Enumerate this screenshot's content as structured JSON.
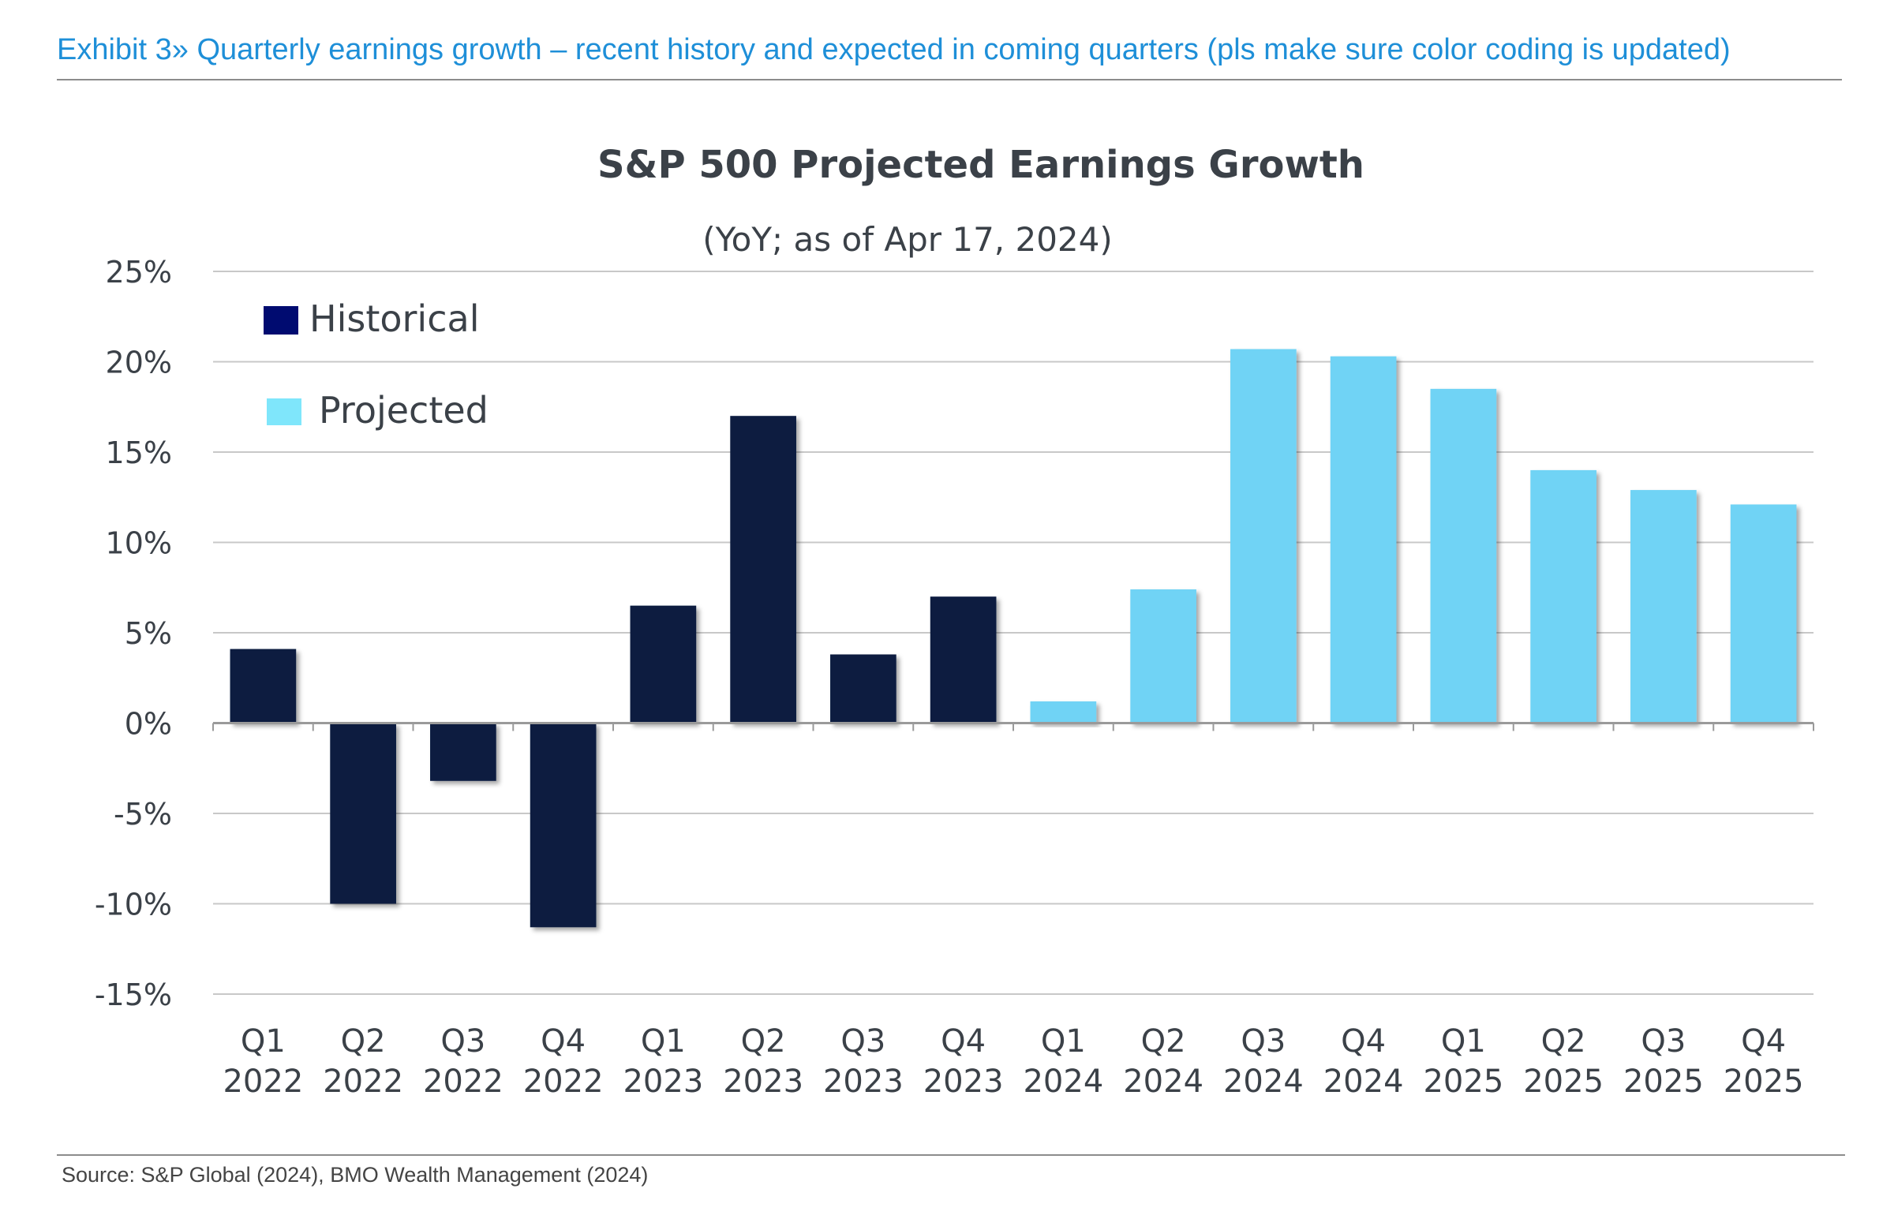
{
  "exhibit_title": "Exhibit 3» Quarterly earnings growth – recent history and expected in coming quarters (pls make sure color coding is updated)",
  "source": "Source: S&P Global (2024), BMO Wealth Management (2024)",
  "colors": {
    "historical": "#071a3f",
    "projected": "#6fd3f5",
    "legend_historical": "#000b70",
    "legend_projected": "#7fe6fb",
    "accent": "#1e8fd8"
  },
  "chart_data": {
    "type": "bar",
    "title": "S&P 500 Projected Earnings Growth",
    "subtitle": "(YoY; as of Apr 17, 2024)",
    "xlabel": "",
    "ylabel": "",
    "ylim": [
      -15,
      25
    ],
    "yticks": [
      25,
      20,
      15,
      10,
      5,
      0,
      -5,
      -10,
      -15
    ],
    "ytick_labels": [
      "25%",
      "20%",
      "15%",
      "10%",
      "5%",
      "0%",
      "-5%",
      "-10%",
      "-15%"
    ],
    "grid": true,
    "legend": [
      {
        "label": "Historical",
        "series": "historical"
      },
      {
        "label": "Projected",
        "series": "projected"
      }
    ],
    "legend_position": "top-left",
    "categories": [
      [
        "Q1",
        "2022"
      ],
      [
        "Q2",
        "2022"
      ],
      [
        "Q3",
        "2022"
      ],
      [
        "Q4",
        "2022"
      ],
      [
        "Q1",
        "2023"
      ],
      [
        "Q2",
        "2023"
      ],
      [
        "Q3",
        "2023"
      ],
      [
        "Q4",
        "2023"
      ],
      [
        "Q1",
        "2024"
      ],
      [
        "Q2",
        "2024"
      ],
      [
        "Q3",
        "2024"
      ],
      [
        "Q4",
        "2024"
      ],
      [
        "Q1",
        "2025"
      ],
      [
        "Q2",
        "2025"
      ],
      [
        "Q3",
        "2025"
      ],
      [
        "Q4",
        "2025"
      ]
    ],
    "values": [
      4.1,
      -10.0,
      -3.2,
      -11.3,
      6.5,
      17.0,
      3.8,
      7.0,
      1.2,
      7.4,
      20.7,
      20.3,
      18.5,
      14.0,
      12.9,
      12.1
    ],
    "series_type": [
      "historical",
      "historical",
      "historical",
      "historical",
      "historical",
      "historical",
      "historical",
      "historical",
      "projected",
      "projected",
      "projected",
      "projected",
      "projected",
      "projected",
      "projected",
      "projected"
    ]
  }
}
